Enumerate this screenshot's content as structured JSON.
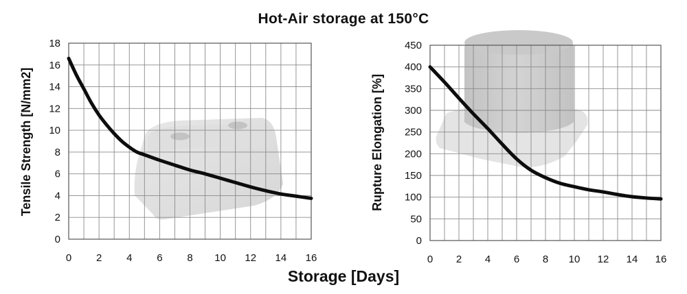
{
  "title": "Hot-Air storage at 150°C",
  "common_xlabel": "Storage [Days]",
  "chart_data": [
    {
      "type": "line",
      "title": "",
      "xlabel": "Storage [Days]",
      "ylabel": "Tensile Strength [N/mm2]",
      "xlim": [
        0,
        16
      ],
      "ylim": [
        0,
        18
      ],
      "xticks": [
        0,
        2,
        4,
        6,
        8,
        10,
        12,
        14,
        16
      ],
      "yticks": [
        0,
        2,
        4,
        6,
        8,
        10,
        12,
        14,
        16,
        18
      ],
      "grid": true,
      "series": [
        {
          "x": [
            0,
            0.5,
            1,
            1.5,
            2,
            2.5,
            3,
            3.5,
            4,
            4.5,
            5,
            6,
            7,
            8,
            9,
            10,
            11,
            12,
            13,
            14,
            15,
            16
          ],
          "y": [
            16.6,
            15.1,
            13.8,
            12.5,
            11.4,
            10.5,
            9.7,
            9.0,
            8.45,
            8.0,
            7.75,
            7.25,
            6.8,
            6.35,
            6.0,
            5.6,
            5.2,
            4.8,
            4.45,
            4.15,
            3.95,
            3.75
          ]
        }
      ]
    },
    {
      "type": "line",
      "title": "",
      "xlabel": "Storage [Days]",
      "ylabel": "Rupture Elongation [%]",
      "xlim": [
        0,
        16
      ],
      "ylim": [
        0,
        450
      ],
      "xticks": [
        0,
        2,
        4,
        6,
        8,
        10,
        12,
        14,
        16
      ],
      "yticks": [
        0,
        50,
        100,
        150,
        200,
        250,
        300,
        350,
        400,
        450
      ],
      "grid": true,
      "series": [
        {
          "x": [
            0,
            1,
            2,
            3,
            4,
            5,
            6,
            7,
            8,
            9,
            10,
            11,
            12,
            13,
            14,
            15,
            16
          ],
          "y": [
            400,
            365,
            328,
            292,
            258,
            222,
            188,
            162,
            145,
            132,
            124,
            117,
            112,
            106,
            101,
            98,
            96
          ]
        }
      ]
    }
  ]
}
